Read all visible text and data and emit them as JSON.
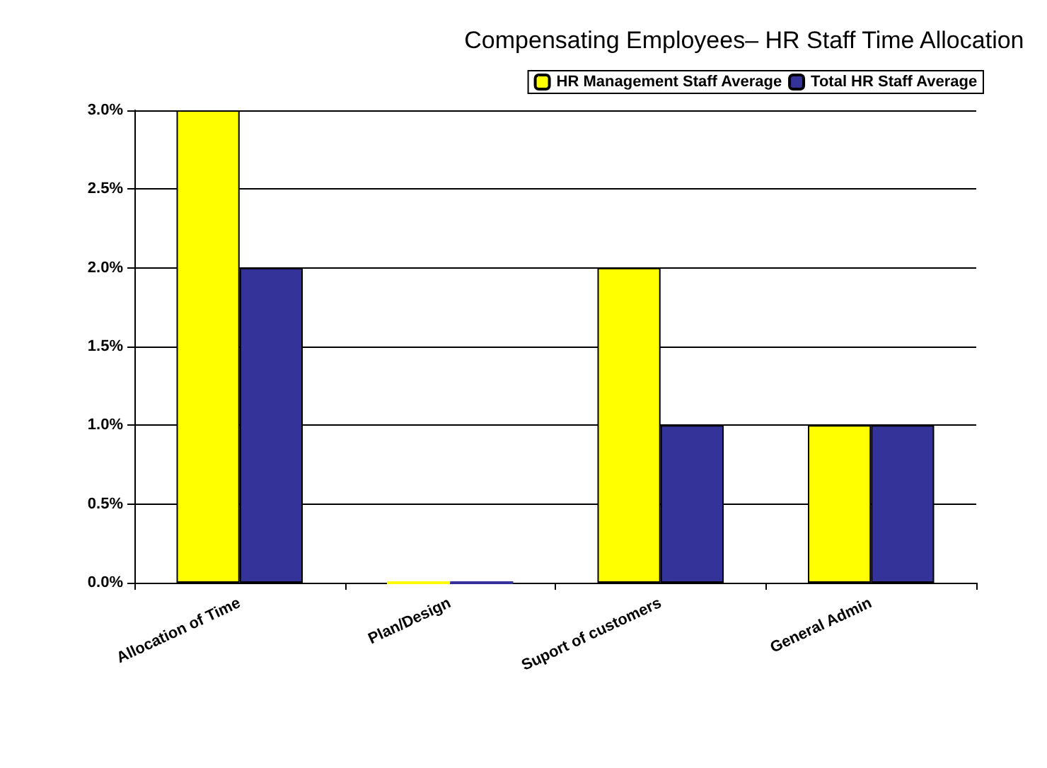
{
  "chart_data": {
    "type": "bar",
    "title": "Compensating Employees– HR Staff Time Allocation",
    "categories": [
      "Allocation of Time",
      "Plan/Design",
      "Suport of customers",
      "General Admin"
    ],
    "series": [
      {
        "name": "HR Management Staff Average",
        "color": "#ffff00",
        "values": [
          3.0,
          0,
          2.0,
          1.0
        ]
      },
      {
        "name": "Total HR Staff Average",
        "color": "#333399",
        "values": [
          2.0,
          0,
          1.0,
          1.0
        ]
      }
    ],
    "ylim": [
      0,
      3
    ],
    "yticks": [
      {
        "value": 0,
        "label": "0.0%"
      },
      {
        "value": 0.5,
        "label": "0.5%"
      },
      {
        "value": 1,
        "label": "1.0%"
      },
      {
        "value": 1.5,
        "label": "1.5%"
      },
      {
        "value": 2,
        "label": "2.0%"
      },
      {
        "value": 2.5,
        "label": "2.5%"
      },
      {
        "value": 3,
        "label": "3.0%"
      }
    ],
    "grid": "y",
    "legend": "top right"
  }
}
